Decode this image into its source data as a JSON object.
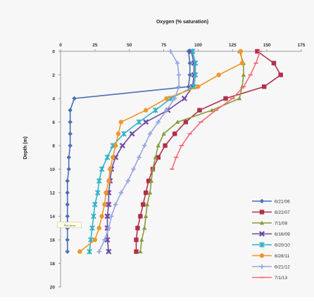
{
  "chart_data": {
    "type": "line",
    "title": "Oxygen (% saturation)",
    "xlabel": "",
    "ylabel": "Depth (m)",
    "xlim": [
      0,
      175
    ],
    "ylim": [
      0,
      20
    ],
    "y_inverted": true,
    "x_axis_position": "top",
    "grid": false,
    "legend_position": "bottom-right",
    "x_ticks": [
      0,
      25,
      50,
      75,
      100,
      125,
      150,
      175
    ],
    "y_ticks": [
      0,
      2,
      4,
      6,
      8,
      10,
      12,
      14,
      16,
      18,
      20
    ],
    "annotation": {
      "text": "Plot Area",
      "x": 5,
      "y": 14.8
    },
    "series": [
      {
        "name": "6/21/06",
        "color": "#4a6fb3",
        "marker": "diamond",
        "points": [
          [
            93,
            0
          ],
          [
            94,
            1
          ],
          [
            94,
            2
          ],
          [
            93,
            3
          ],
          [
            10,
            4
          ],
          [
            7,
            5
          ],
          [
            7,
            6
          ],
          [
            7,
            7
          ],
          [
            7,
            8
          ],
          [
            6,
            9
          ],
          [
            6,
            10
          ],
          [
            5,
            11
          ],
          [
            5,
            12
          ],
          [
            5,
            13
          ],
          [
            5,
            14
          ],
          [
            5,
            15
          ],
          [
            5,
            16
          ],
          [
            5,
            17
          ]
        ]
      },
      {
        "name": "6/22/07",
        "color": "#b0304a",
        "marker": "square",
        "points": [
          [
            143,
            0
          ],
          [
            155,
            1
          ],
          [
            160,
            2
          ],
          [
            148,
            3
          ],
          [
            120,
            4
          ],
          [
            101,
            5
          ],
          [
            91,
            6
          ],
          [
            83,
            7
          ],
          [
            76,
            8
          ],
          [
            71,
            9
          ],
          [
            67,
            10
          ],
          [
            64,
            11
          ],
          [
            62,
            12
          ],
          [
            60,
            13
          ],
          [
            58,
            14
          ],
          [
            56,
            15
          ],
          [
            55,
            16
          ],
          [
            55,
            17
          ]
        ]
      },
      {
        "name": "7/1/08",
        "color": "#8a9a3a",
        "marker": "triangle",
        "points": [
          [
            130,
            0
          ],
          [
            133,
            1
          ],
          [
            133,
            2
          ],
          [
            132,
            3
          ],
          [
            130,
            4
          ],
          [
            110,
            5
          ],
          [
            85,
            6
          ],
          [
            75,
            7
          ],
          [
            71,
            8
          ],
          [
            69,
            9
          ],
          [
            67,
            10
          ],
          [
            66,
            11
          ],
          [
            65,
            12
          ],
          [
            63,
            13
          ],
          [
            62,
            14
          ],
          [
            61,
            15
          ],
          [
            59,
            16
          ],
          [
            58,
            17
          ]
        ]
      },
      {
        "name": "6/16/09",
        "color": "#6b4aa5",
        "marker": "x",
        "points": [
          [
            95,
            0
          ],
          [
            97,
            1
          ],
          [
            97,
            2
          ],
          [
            96,
            3
          ],
          [
            90,
            4
          ],
          [
            78,
            5
          ],
          [
            62,
            6
          ],
          [
            52,
            7
          ],
          [
            45,
            8
          ],
          [
            40,
            9
          ],
          [
            37,
            10
          ],
          [
            36,
            11
          ],
          [
            35,
            12
          ],
          [
            35,
            13
          ],
          [
            34,
            14
          ],
          [
            34,
            15
          ],
          [
            34,
            16
          ],
          [
            35,
            17
          ]
        ]
      },
      {
        "name": "6/20/10",
        "color": "#2fb4c6",
        "marker": "star",
        "points": [
          [
            96,
            0
          ],
          [
            98,
            1
          ],
          [
            98,
            2
          ],
          [
            97,
            3
          ],
          [
            80,
            4
          ],
          [
            69,
            5
          ],
          [
            57,
            6
          ],
          [
            46,
            7
          ],
          [
            38,
            8
          ],
          [
            34,
            9
          ],
          [
            30,
            10
          ],
          [
            28,
            11
          ],
          [
            27,
            12
          ],
          [
            25,
            13
          ],
          [
            24,
            14
          ],
          [
            23,
            15
          ],
          [
            22,
            16
          ],
          [
            21,
            17
          ]
        ]
      },
      {
        "name": "6/28/11",
        "color": "#f0962a",
        "marker": "circle",
        "points": [
          [
            131,
            0
          ],
          [
            132,
            1
          ],
          [
            115,
            2
          ],
          [
            100,
            3
          ],
          [
            77,
            4
          ],
          [
            62,
            5
          ],
          [
            44,
            6
          ],
          [
            42,
            7
          ],
          [
            40,
            8
          ],
          [
            38,
            9
          ],
          [
            36,
            10
          ],
          [
            35,
            11
          ],
          [
            33,
            12
          ],
          [
            32,
            13
          ],
          [
            30,
            14
          ],
          [
            28,
            15
          ],
          [
            25,
            16
          ],
          [
            14,
            17
          ]
        ]
      },
      {
        "name": "6/21/12",
        "color": "#9aa6e2",
        "marker": "plus",
        "points": [
          [
            80,
            0
          ],
          [
            85,
            1
          ],
          [
            86,
            2
          ],
          [
            86,
            3
          ],
          [
            83,
            4
          ],
          [
            77,
            5
          ],
          [
            71,
            6
          ],
          [
            65,
            7
          ],
          [
            61,
            8
          ],
          [
            57,
            9
          ],
          [
            53,
            10
          ],
          [
            49,
            11
          ],
          [
            44,
            12
          ],
          [
            40,
            13
          ],
          [
            37,
            14
          ],
          [
            35,
            15
          ],
          [
            32,
            16
          ],
          [
            28,
            17
          ]
        ]
      },
      {
        "name": "7/1/13",
        "color": "#f26a7a",
        "marker": "dash",
        "points": [
          [
            145,
            0
          ],
          [
            142,
            1
          ],
          [
            138,
            2
          ],
          [
            133,
            3
          ],
          [
            125,
            4
          ],
          [
            113,
            5
          ],
          [
            102,
            6
          ],
          [
            94,
            7
          ],
          [
            88,
            8
          ],
          [
            84,
            9
          ],
          [
            81,
            10
          ]
        ]
      }
    ]
  }
}
